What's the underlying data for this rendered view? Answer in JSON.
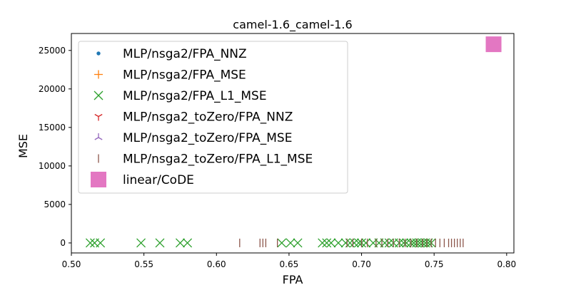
{
  "chart_data": {
    "type": "scatter",
    "title": "camel-1.6_camel-1.6",
    "xlabel": "FPA",
    "ylabel": "MSE",
    "xlim": [
      0.5,
      0.805
    ],
    "ylim": [
      -1300,
      27200
    ],
    "xticks": [
      0.5,
      0.55,
      0.6,
      0.65,
      0.7,
      0.75,
      0.8
    ],
    "xtick_labels": [
      "0.50",
      "0.55",
      "0.60",
      "0.65",
      "0.70",
      "0.75",
      "0.80"
    ],
    "yticks": [
      0,
      5000,
      10000,
      15000,
      20000,
      25000
    ],
    "ytick_labels": [
      "0",
      "5000",
      "10000",
      "15000",
      "20000",
      "25000"
    ],
    "grid": false,
    "legend_position": "upper-left",
    "series": [
      {
        "name": "MLP/nsga2/FPA_NNZ",
        "marker": "dot",
        "color": "#1f77b4",
        "x": [],
        "y": []
      },
      {
        "name": "MLP/nsga2/FPA_MSE",
        "marker": "plus",
        "color": "#ff7f0e",
        "x": [],
        "y": []
      },
      {
        "name": "MLP/nsga2/FPA_L1_MSE",
        "marker": "x",
        "color": "#2ca02c",
        "x": [
          0.513,
          0.516,
          0.52,
          0.548,
          0.561,
          0.575,
          0.58,
          0.645,
          0.651,
          0.656,
          0.673,
          0.676,
          0.679,
          0.684,
          0.689,
          0.692,
          0.695,
          0.698,
          0.7,
          0.703,
          0.708,
          0.712,
          0.716,
          0.719,
          0.722,
          0.726,
          0.729,
          0.731,
          0.734,
          0.736,
          0.738,
          0.74,
          0.742,
          0.744,
          0.746,
          0.748
        ],
        "y": [
          0,
          0,
          0,
          0,
          0,
          0,
          0,
          0,
          0,
          0,
          0,
          0,
          0,
          0,
          0,
          0,
          0,
          0,
          0,
          0,
          0,
          0,
          0,
          0,
          0,
          0,
          0,
          0,
          0,
          0,
          0,
          0,
          0,
          0,
          0,
          0
        ]
      },
      {
        "name": "MLP/nsga2_toZero/FPA_NNZ",
        "marker": "tri_down",
        "color": "#d62728",
        "x": [],
        "y": []
      },
      {
        "name": "MLP/nsga2_toZero/FPA_MSE",
        "marker": "tri_up",
        "color": "#9467bd",
        "x": [],
        "y": []
      },
      {
        "name": "MLP/nsga2_toZero/FPA_L1_MSE",
        "marker": "vline",
        "color": "#8c564b",
        "x": [
          0.616,
          0.63,
          0.632,
          0.634,
          0.642,
          0.69,
          0.694,
          0.7,
          0.704,
          0.71,
          0.714,
          0.718,
          0.722,
          0.726,
          0.73,
          0.734,
          0.738,
          0.742,
          0.745,
          0.748,
          0.751,
          0.754,
          0.757,
          0.76,
          0.762,
          0.764,
          0.766,
          0.768,
          0.77
        ],
        "y": [
          0,
          0,
          0,
          0,
          0,
          0,
          0,
          0,
          0,
          0,
          0,
          0,
          0,
          0,
          0,
          0,
          0,
          0,
          0,
          0,
          0,
          0,
          0,
          0,
          0,
          0,
          0,
          0,
          0
        ]
      },
      {
        "name": "linear/CoDE",
        "marker": "square",
        "color": "#e377c2",
        "x": [
          0.791
        ],
        "y": [
          25800
        ]
      }
    ]
  }
}
